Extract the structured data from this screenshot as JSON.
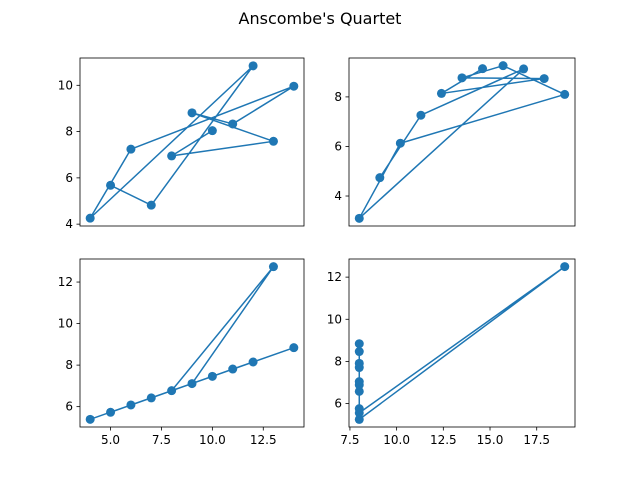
{
  "figure": {
    "title": "Anscombe's Quartet",
    "accent": "#1f77b4",
    "background": "#ffffff"
  },
  "chart_data": [
    {
      "type": "line",
      "markers": true,
      "grid": false,
      "title": "",
      "xlabel": "",
      "ylabel": "",
      "x": [
        10,
        8,
        13,
        9,
        11,
        14,
        6,
        4,
        12,
        7,
        5
      ],
      "y": [
        8.04,
        6.95,
        7.58,
        8.81,
        8.33,
        9.96,
        7.24,
        4.26,
        10.84,
        4.82,
        5.68
      ],
      "xlim": [
        3.5,
        14.5
      ],
      "ylim": [
        3.92,
        11.18
      ],
      "xticks": [],
      "yticks": [
        4,
        6,
        8,
        10
      ],
      "xtick_labels": [],
      "ytick_labels": [
        "4",
        "6",
        "8",
        "10"
      ]
    },
    {
      "type": "line",
      "markers": true,
      "grid": false,
      "title": "",
      "xlabel": "",
      "ylabel": "",
      "x": [
        10,
        8,
        13,
        9,
        11,
        14,
        6,
        4,
        12,
        7,
        5
      ],
      "y": [
        9.14,
        8.14,
        8.74,
        8.77,
        9.26,
        8.1,
        6.13,
        3.1,
        9.13,
        7.26,
        4.74
      ],
      "xlim": [
        3.5,
        14.5
      ],
      "ylim": [
        2.79,
        9.57
      ],
      "xticks": [],
      "yticks": [
        4,
        6,
        8
      ],
      "xtick_labels": [],
      "ytick_labels": [
        "4",
        "6",
        "8"
      ]
    },
    {
      "type": "line",
      "markers": true,
      "grid": false,
      "title": "",
      "xlabel": "",
      "ylabel": "",
      "x": [
        10,
        8,
        13,
        9,
        11,
        14,
        6,
        4,
        12,
        7,
        5
      ],
      "y": [
        7.46,
        6.77,
        12.74,
        7.11,
        7.81,
        8.84,
        6.08,
        5.39,
        8.15,
        6.42,
        5.73
      ],
      "xlim": [
        3.5,
        14.5
      ],
      "ylim": [
        5.02,
        13.11
      ],
      "xticks": [
        5,
        7.5,
        10,
        12.5
      ],
      "yticks": [
        6,
        8,
        10,
        12
      ],
      "xtick_labels": [
        "5.0",
        "7.5",
        "10.0",
        "12.5"
      ],
      "ytick_labels": [
        "6",
        "8",
        "10",
        "12"
      ]
    },
    {
      "type": "line",
      "markers": true,
      "grid": false,
      "title": "",
      "xlabel": "",
      "ylabel": "",
      "x": [
        8,
        8,
        8,
        8,
        8,
        8,
        8,
        19,
        8,
        8,
        8
      ],
      "y": [
        6.58,
        5.76,
        7.71,
        8.84,
        8.47,
        7.04,
        5.25,
        12.5,
        5.56,
        7.91,
        6.89
      ],
      "xlim": [
        7.45,
        19.55
      ],
      "ylim": [
        4.89,
        12.86
      ],
      "xticks": [
        7.5,
        10,
        12.5,
        15,
        17.5
      ],
      "yticks": [
        6,
        8,
        10,
        12
      ],
      "xtick_labels": [
        "7.5",
        "10.0",
        "12.5",
        "15.0",
        "17.5"
      ],
      "ytick_labels": [
        "6",
        "8",
        "10",
        "12"
      ]
    }
  ]
}
